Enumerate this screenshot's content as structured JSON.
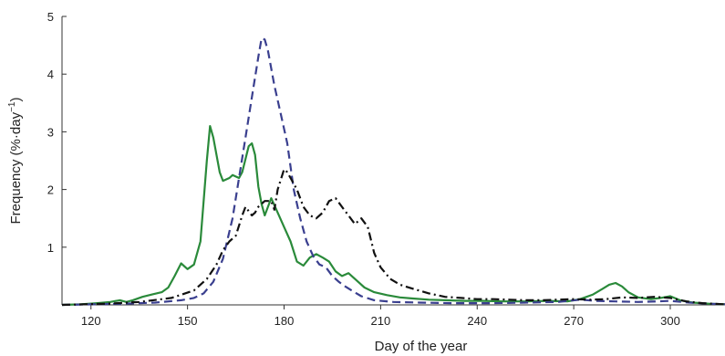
{
  "chart_data": {
    "type": "line",
    "title": "",
    "xlabel": "Day of the year",
    "ylabel_main": "Frequency (%·day",
    "ylabel_sup": "−1",
    "ylabel_close": ")",
    "xlim": [
      111,
      317
    ],
    "ylim": [
      0,
      5
    ],
    "x_ticks": [
      120,
      150,
      180,
      210,
      240,
      270,
      300
    ],
    "y_ticks": [
      1,
      2,
      3,
      4,
      5
    ],
    "grid": false,
    "legend": "none",
    "series": [
      {
        "color": "#2a8a3a",
        "style": "solid",
        "points": [
          [
            111,
            0
          ],
          [
            117,
            0.01
          ],
          [
            122,
            0.03
          ],
          [
            126,
            0.05
          ],
          [
            129,
            0.08
          ],
          [
            131,
            0.05
          ],
          [
            133,
            0.08
          ],
          [
            136,
            0.14
          ],
          [
            139,
            0.18
          ],
          [
            142,
            0.22
          ],
          [
            144,
            0.3
          ],
          [
            146,
            0.5
          ],
          [
            148,
            0.72
          ],
          [
            150,
            0.62
          ],
          [
            152,
            0.7
          ],
          [
            154,
            1.1
          ],
          [
            156,
            2.5
          ],
          [
            157,
            3.1
          ],
          [
            158,
            2.9
          ],
          [
            160,
            2.3
          ],
          [
            161,
            2.15
          ],
          [
            163,
            2.2
          ],
          [
            164,
            2.25
          ],
          [
            166,
            2.2
          ],
          [
            167,
            2.3
          ],
          [
            169,
            2.75
          ],
          [
            170,
            2.8
          ],
          [
            171,
            2.6
          ],
          [
            172,
            2.05
          ],
          [
            173,
            1.75
          ],
          [
            174,
            1.55
          ],
          [
            176,
            1.85
          ],
          [
            178,
            1.6
          ],
          [
            180,
            1.35
          ],
          [
            182,
            1.1
          ],
          [
            184,
            0.75
          ],
          [
            186,
            0.68
          ],
          [
            188,
            0.82
          ],
          [
            190,
            0.88
          ],
          [
            192,
            0.82
          ],
          [
            194,
            0.75
          ],
          [
            196,
            0.58
          ],
          [
            198,
            0.5
          ],
          [
            200,
            0.55
          ],
          [
            202,
            0.45
          ],
          [
            205,
            0.3
          ],
          [
            208,
            0.22
          ],
          [
            212,
            0.17
          ],
          [
            216,
            0.13
          ],
          [
            220,
            0.11
          ],
          [
            225,
            0.09
          ],
          [
            230,
            0.08
          ],
          [
            236,
            0.07
          ],
          [
            242,
            0.07
          ],
          [
            248,
            0.06
          ],
          [
            255,
            0.06
          ],
          [
            262,
            0.07
          ],
          [
            268,
            0.06
          ],
          [
            272,
            0.1
          ],
          [
            276,
            0.18
          ],
          [
            279,
            0.28
          ],
          [
            281,
            0.35
          ],
          [
            283,
            0.38
          ],
          [
            285,
            0.32
          ],
          [
            287,
            0.22
          ],
          [
            290,
            0.13
          ],
          [
            294,
            0.1
          ],
          [
            297,
            0.12
          ],
          [
            300,
            0.15
          ],
          [
            303,
            0.08
          ],
          [
            307,
            0.04
          ],
          [
            312,
            0.02
          ],
          [
            317,
            0.01
          ]
        ]
      },
      {
        "color": "#3a3f8f",
        "style": "dashed",
        "points": [
          [
            111,
            0
          ],
          [
            120,
            0.01
          ],
          [
            130,
            0.02
          ],
          [
            140,
            0.04
          ],
          [
            148,
            0.08
          ],
          [
            152,
            0.12
          ],
          [
            155,
            0.2
          ],
          [
            158,
            0.4
          ],
          [
            161,
            0.8
          ],
          [
            164,
            1.5
          ],
          [
            166,
            2.2
          ],
          [
            168,
            2.9
          ],
          [
            170,
            3.6
          ],
          [
            172,
            4.3
          ],
          [
            173,
            4.62
          ],
          [
            174,
            4.6
          ],
          [
            175,
            4.4
          ],
          [
            177,
            3.8
          ],
          [
            179,
            3.3
          ],
          [
            181,
            2.8
          ],
          [
            183,
            2.0
          ],
          [
            185,
            1.5
          ],
          [
            187,
            1.1
          ],
          [
            189,
            0.85
          ],
          [
            191,
            0.7
          ],
          [
            193,
            0.65
          ],
          [
            195,
            0.5
          ],
          [
            197,
            0.4
          ],
          [
            199,
            0.32
          ],
          [
            201,
            0.25
          ],
          [
            204,
            0.15
          ],
          [
            208,
            0.08
          ],
          [
            214,
            0.05
          ],
          [
            222,
            0.04
          ],
          [
            232,
            0.03
          ],
          [
            245,
            0.03
          ],
          [
            255,
            0.04
          ],
          [
            265,
            0.05
          ],
          [
            272,
            0.09
          ],
          [
            277,
            0.07
          ],
          [
            283,
            0.06
          ],
          [
            290,
            0.05
          ],
          [
            296,
            0.06
          ],
          [
            300,
            0.07
          ],
          [
            306,
            0.04
          ],
          [
            312,
            0.02
          ],
          [
            317,
            0.01
          ]
        ]
      },
      {
        "color": "#111111",
        "style": "dashdot",
        "points": [
          [
            111,
            0
          ],
          [
            125,
            0.02
          ],
          [
            135,
            0.05
          ],
          [
            145,
            0.12
          ],
          [
            152,
            0.25
          ],
          [
            156,
            0.45
          ],
          [
            159,
            0.7
          ],
          [
            161,
            0.95
          ],
          [
            163,
            1.1
          ],
          [
            165,
            1.2
          ],
          [
            167,
            1.55
          ],
          [
            168,
            1.7
          ],
          [
            170,
            1.55
          ],
          [
            171,
            1.6
          ],
          [
            172,
            1.7
          ],
          [
            174,
            1.8
          ],
          [
            176,
            1.8
          ],
          [
            177,
            1.65
          ],
          [
            178,
            2.0
          ],
          [
            180,
            2.35
          ],
          [
            181,
            2.3
          ],
          [
            182,
            2.2
          ],
          [
            184,
            2.0
          ],
          [
            186,
            1.7
          ],
          [
            188,
            1.55
          ],
          [
            190,
            1.5
          ],
          [
            192,
            1.6
          ],
          [
            194,
            1.8
          ],
          [
            196,
            1.85
          ],
          [
            198,
            1.7
          ],
          [
            200,
            1.55
          ],
          [
            202,
            1.4
          ],
          [
            204,
            1.5
          ],
          [
            206,
            1.35
          ],
          [
            208,
            0.9
          ],
          [
            210,
            0.65
          ],
          [
            213,
            0.45
          ],
          [
            216,
            0.35
          ],
          [
            220,
            0.28
          ],
          [
            225,
            0.2
          ],
          [
            230,
            0.14
          ],
          [
            235,
            0.12
          ],
          [
            240,
            0.1
          ],
          [
            245,
            0.1
          ],
          [
            250,
            0.09
          ],
          [
            255,
            0.08
          ],
          [
            260,
            0.08
          ],
          [
            265,
            0.09
          ],
          [
            270,
            0.1
          ],
          [
            275,
            0.09
          ],
          [
            280,
            0.1
          ],
          [
            285,
            0.13
          ],
          [
            290,
            0.12
          ],
          [
            295,
            0.14
          ],
          [
            300,
            0.12
          ],
          [
            305,
            0.06
          ],
          [
            310,
            0.03
          ],
          [
            317,
            0.01
          ]
        ]
      }
    ]
  }
}
